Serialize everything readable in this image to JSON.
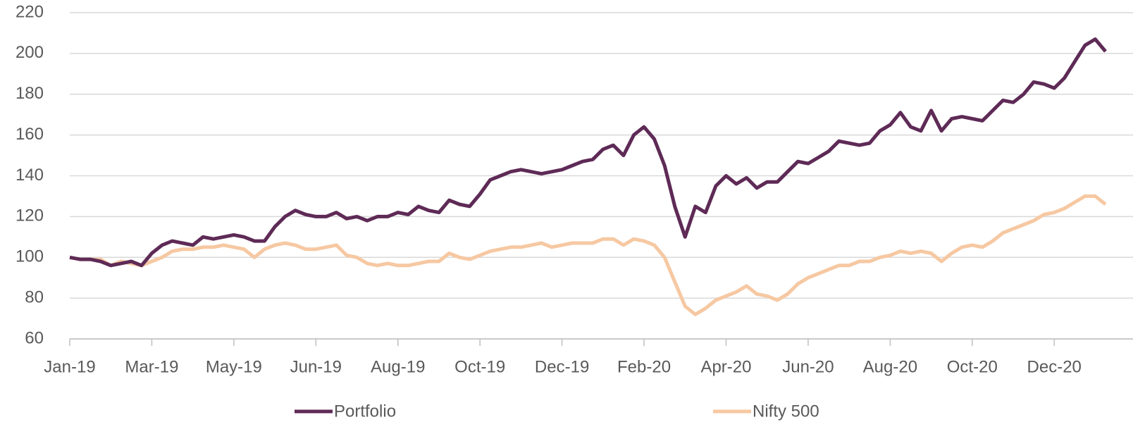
{
  "chart_data": {
    "type": "line",
    "categories": [
      "Jan-19",
      null,
      null,
      null,
      null,
      null,
      null,
      null,
      "Mar-19",
      null,
      null,
      null,
      null,
      null,
      null,
      null,
      "May-19",
      null,
      null,
      null,
      null,
      null,
      null,
      null,
      "Jun-19",
      null,
      null,
      null,
      null,
      null,
      null,
      null,
      "Aug-19",
      null,
      null,
      null,
      null,
      null,
      null,
      null,
      "Oct-19",
      null,
      null,
      null,
      null,
      null,
      null,
      null,
      "Dec-19",
      null,
      null,
      null,
      null,
      null,
      null,
      null,
      "Feb-20",
      null,
      null,
      null,
      null,
      null,
      null,
      null,
      "Apr-20",
      null,
      null,
      null,
      null,
      null,
      null,
      null,
      "Jun-20",
      null,
      null,
      null,
      null,
      null,
      null,
      null,
      "Aug-20",
      null,
      null,
      null,
      null,
      null,
      null,
      null,
      "Oct-20",
      null,
      null,
      null,
      null,
      null,
      null,
      null,
      "Dec-20",
      null,
      null,
      null,
      null,
      null
    ],
    "series": [
      {
        "name": "Portfolio",
        "color": "#5e2a56",
        "values": [
          100,
          99,
          99,
          98,
          96,
          97,
          98,
          96,
          102,
          106,
          108,
          107,
          106,
          110,
          109,
          110,
          111,
          110,
          108,
          108,
          115,
          120,
          123,
          121,
          120,
          120,
          122,
          119,
          120,
          118,
          120,
          120,
          122,
          121,
          125,
          123,
          122,
          128,
          126,
          125,
          131,
          138,
          140,
          142,
          143,
          142,
          141,
          142,
          143,
          145,
          147,
          148,
          153,
          155,
          150,
          160,
          164,
          158,
          145,
          125,
          110,
          125,
          122,
          135,
          140,
          136,
          139,
          134,
          137,
          137,
          142,
          147,
          146,
          149,
          152,
          157,
          156,
          155,
          156,
          162,
          165,
          171,
          164,
          162,
          172,
          162,
          168,
          169,
          168,
          167,
          172,
          177,
          176,
          180,
          186,
          185,
          183,
          188,
          196,
          204,
          207,
          201
        ]
      },
      {
        "name": "Nifty 500",
        "color": "#f6c8a2",
        "values": [
          100,
          99,
          99,
          99,
          96,
          98,
          97,
          96,
          98,
          100,
          103,
          104,
          104,
          105,
          105,
          106,
          105,
          104,
          100,
          104,
          106,
          107,
          106,
          104,
          104,
          105,
          106,
          101,
          100,
          97,
          96,
          97,
          96,
          96,
          97,
          98,
          98,
          102,
          100,
          99,
          101,
          103,
          104,
          105,
          105,
          106,
          107,
          105,
          106,
          107,
          107,
          107,
          109,
          109,
          106,
          109,
          108,
          106,
          100,
          88,
          76,
          72,
          75,
          79,
          81,
          83,
          86,
          82,
          81,
          79,
          82,
          87,
          90,
          92,
          94,
          96,
          96,
          98,
          98,
          100,
          101,
          103,
          102,
          103,
          102,
          98,
          102,
          105,
          106,
          105,
          108,
          112,
          114,
          116,
          118,
          121,
          122,
          124,
          127,
          130,
          130,
          126
        ]
      }
    ],
    "ylim": [
      60,
      220
    ],
    "yticks": [
      60,
      80,
      100,
      120,
      140,
      160,
      180,
      200,
      220
    ],
    "grid": true,
    "legend": "bottom"
  }
}
